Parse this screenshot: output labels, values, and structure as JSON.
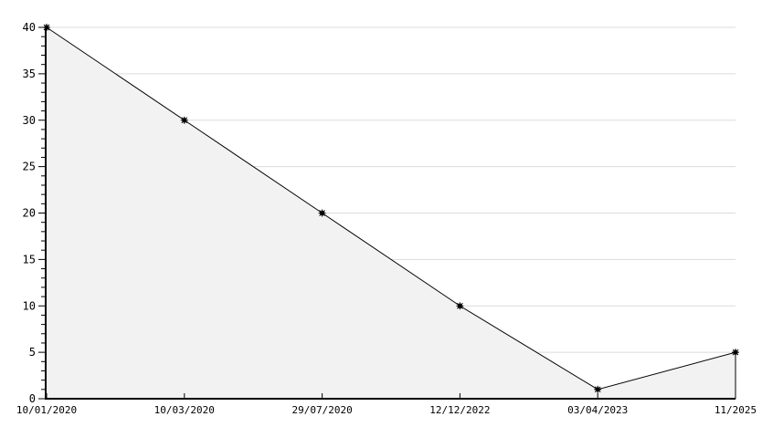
{
  "chart_data": {
    "type": "area",
    "title": "",
    "xlabel": "",
    "ylabel": "",
    "categories": [
      "10/01/2020",
      "10/03/2020",
      "29/07/2020",
      "12/12/2022",
      "03/04/2023",
      "11/2025"
    ],
    "values": [
      40,
      30,
      20,
      10,
      1,
      5
    ],
    "ylim": [
      0,
      40
    ],
    "yticks": [
      0,
      5,
      10,
      15,
      20,
      25,
      30,
      35,
      40
    ],
    "y_minor_step": 1,
    "grid": true,
    "legend_position": "none",
    "marker": "star-dot",
    "colors": {
      "background": "#ffffff",
      "grid_line": "#dcdcdc",
      "area_fill": "#f2f2f2",
      "line": "#000000",
      "axis": "#000000",
      "tick_label": "#000000"
    }
  }
}
